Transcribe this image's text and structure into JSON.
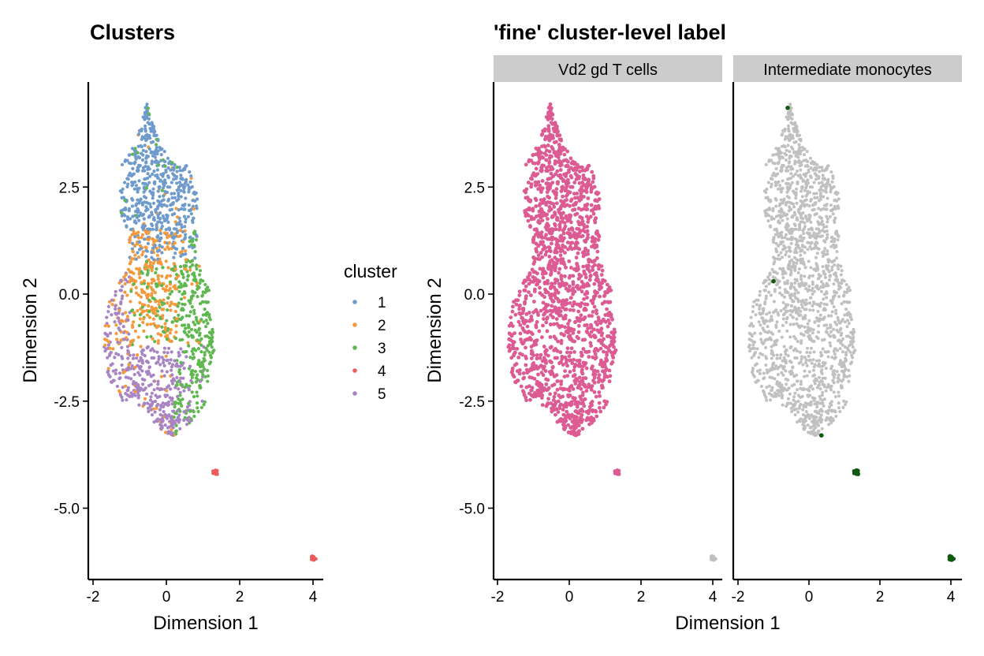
{
  "chart_data": [
    {
      "type": "scatter",
      "title": "Clusters",
      "xlabel": "Dimension 1",
      "ylabel": "Dimension 2",
      "xlim": [
        -2.15,
        4.35
      ],
      "ylim": [
        -6.65,
        4.95
      ],
      "x_ticks": [
        -2,
        0,
        2,
        4
      ],
      "y_ticks": [
        2.5,
        0.0,
        -2.5,
        -5.0
      ],
      "x_tick_labels": [
        "-2",
        "0",
        "2",
        "4"
      ],
      "y_tick_labels": [
        "2.5",
        "0.0",
        "-2.5",
        "-5.0"
      ],
      "grid": false,
      "legend": {
        "title": "cluster",
        "placement": "right",
        "entries": [
          {
            "label": "1",
            "color": "#6f9bcc"
          },
          {
            "label": "2",
            "color": "#f59a3c"
          },
          {
            "label": "3",
            "color": "#5fb84f"
          },
          {
            "label": "4",
            "color": "#e85c5c"
          },
          {
            "label": "5",
            "color": "#a884c4"
          }
        ]
      },
      "series": [
        {
          "name": "1",
          "color": "#6f9bcc",
          "approx_count": 560,
          "region_center": [
            -0.3,
            2.3
          ],
          "spread": [
            0.75,
            0.65
          ],
          "apex": [
            -0.6,
            4.4
          ]
        },
        {
          "name": "2",
          "color": "#f59a3c",
          "approx_count": 230,
          "region_center": [
            -0.4,
            0.1
          ],
          "spread": [
            0.65,
            0.9
          ]
        },
        {
          "name": "3",
          "color": "#5fb84f",
          "approx_count": 480,
          "region_center": [
            0.9,
            -0.9
          ],
          "spread": [
            0.6,
            0.85
          ]
        },
        {
          "name": "4",
          "color": "#e85c5c",
          "approx_count": 40,
          "point_groups": [
            [
              1.35,
              -4.15
            ],
            [
              4.0,
              -6.15
            ]
          ]
        },
        {
          "name": "5",
          "color": "#a884c4",
          "approx_count": 420,
          "region_center": [
            -0.6,
            -1.9
          ],
          "spread": [
            0.75,
            0.65
          ]
        }
      ]
    },
    {
      "type": "scatter",
      "title": "'fine' cluster-level label",
      "xlabel": "Dimension 1",
      "ylabel": "Dimension 2",
      "xlim": [
        -2.15,
        4.35
      ],
      "ylim": [
        -6.65,
        4.95
      ],
      "x_ticks": [
        -2,
        0,
        2,
        4
      ],
      "y_ticks": [
        2.5,
        0.0,
        -2.5,
        -5.0
      ],
      "x_tick_labels": [
        "-2",
        "0",
        "2",
        "4"
      ],
      "y_tick_labels": [
        "2.5",
        "0.0",
        "-2.5",
        "-5.0"
      ],
      "grid": false,
      "facets": [
        {
          "label": "Vd2 gd T cells",
          "highlight_color": "#dc5b93",
          "background_color": "#c0c0c0",
          "highlighted": "main cell cloud and small group near (1.35, -4.15)",
          "not_highlighted": "small group near (4.0, -6.15)"
        },
        {
          "label": "Intermediate monocytes",
          "highlight_color": "#0f5a0f",
          "background_color": "#c0c0c0",
          "highlighted_points": [
            [
              -0.6,
              4.35
            ],
            [
              -1.0,
              0.3
            ],
            [
              0.35,
              -3.3
            ],
            [
              1.35,
              -4.15
            ],
            [
              4.0,
              -6.15
            ]
          ],
          "not_highlighted": "main cell cloud"
        }
      ]
    }
  ]
}
